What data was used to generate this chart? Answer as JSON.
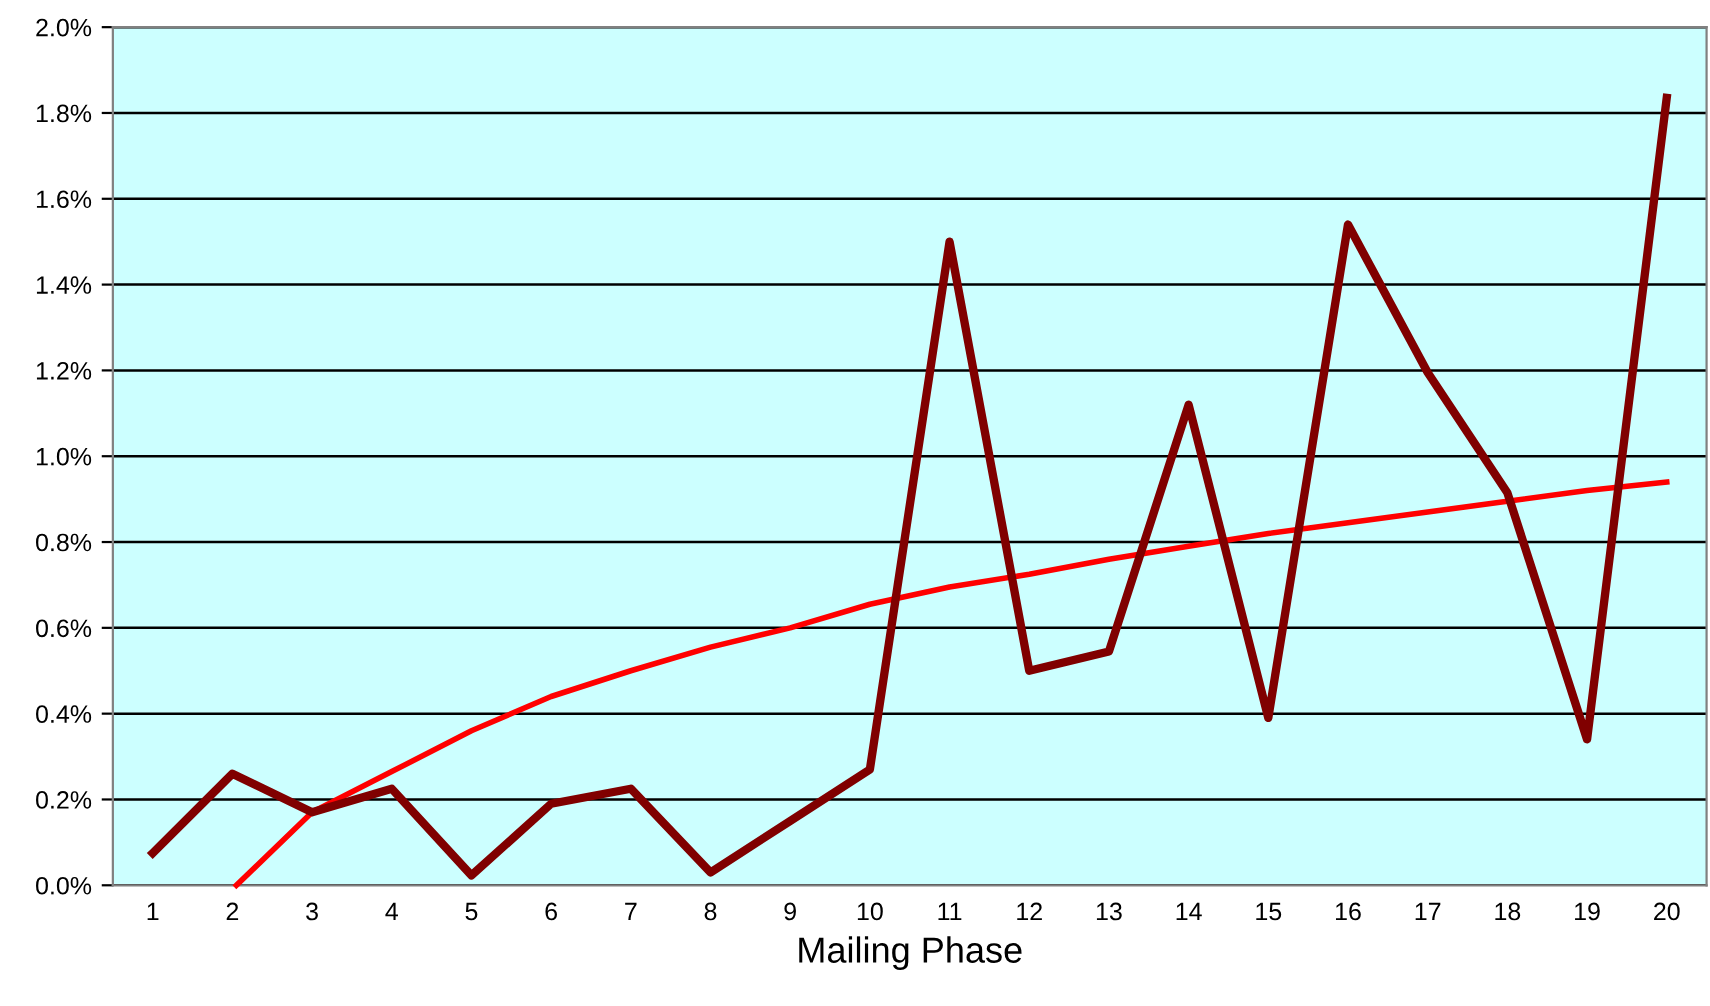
{
  "chart_data": {
    "type": "line",
    "xlabel": "Mailing Phase",
    "x": [
      1,
      2,
      3,
      4,
      5,
      6,
      7,
      8,
      9,
      10,
      11,
      12,
      13,
      14,
      15,
      16,
      17,
      18,
      19,
      20
    ],
    "series": [
      {
        "color": "#800000",
        "values": [
          0.075,
          0.26,
          0.17,
          0.225,
          0.023,
          0.19,
          0.225,
          0.03,
          0.15,
          0.27,
          1.5,
          0.5,
          0.545,
          1.12,
          0.39,
          1.54,
          1.195,
          0.915,
          0.34,
          1.835
        ]
      },
      {
        "type": "line",
        "color": "#ff0000",
        "x": [
          2.05,
          3,
          4,
          5,
          6,
          7,
          8,
          9,
          10,
          11,
          12,
          13,
          14,
          15,
          16,
          17,
          18,
          19,
          20
        ],
        "values": [
          0,
          0.17,
          0.265,
          0.36,
          0.44,
          0.5,
          0.555,
          0.6,
          0.655,
          0.695,
          0.725,
          0.76,
          0.79,
          0.82,
          0.845,
          0.87,
          0.895,
          0.92,
          0.94
        ]
      }
    ],
    "xlim": [
      0.5,
      20.5
    ],
    "xticks": [
      1,
      2,
      3,
      4,
      5,
      6,
      7,
      8,
      9,
      10,
      11,
      12,
      13,
      14,
      15,
      16,
      17,
      18,
      19,
      20
    ],
    "ylim": [
      0,
      2.0
    ],
    "yticks": [
      {
        "value": 0,
        "label": "0.0%"
      },
      {
        "value": 0.2,
        "label": "0.2%"
      },
      {
        "value": 0.4,
        "label": "0.4%"
      },
      {
        "value": 0.6,
        "label": "0.6%"
      },
      {
        "value": 0.8,
        "label": "0.8%"
      },
      {
        "value": 1.0,
        "label": "1.0%"
      },
      {
        "value": 1.2,
        "label": "1.2%"
      },
      {
        "value": 1.4,
        "label": "1.4%"
      },
      {
        "value": 1.6,
        "label": "1.6%"
      },
      {
        "value": 1.8,
        "label": "1.8%"
      },
      {
        "value": 2.0,
        "label": "2.0%"
      }
    ],
    "grid": "y",
    "marker": "none",
    "line_style": "solid"
  }
}
